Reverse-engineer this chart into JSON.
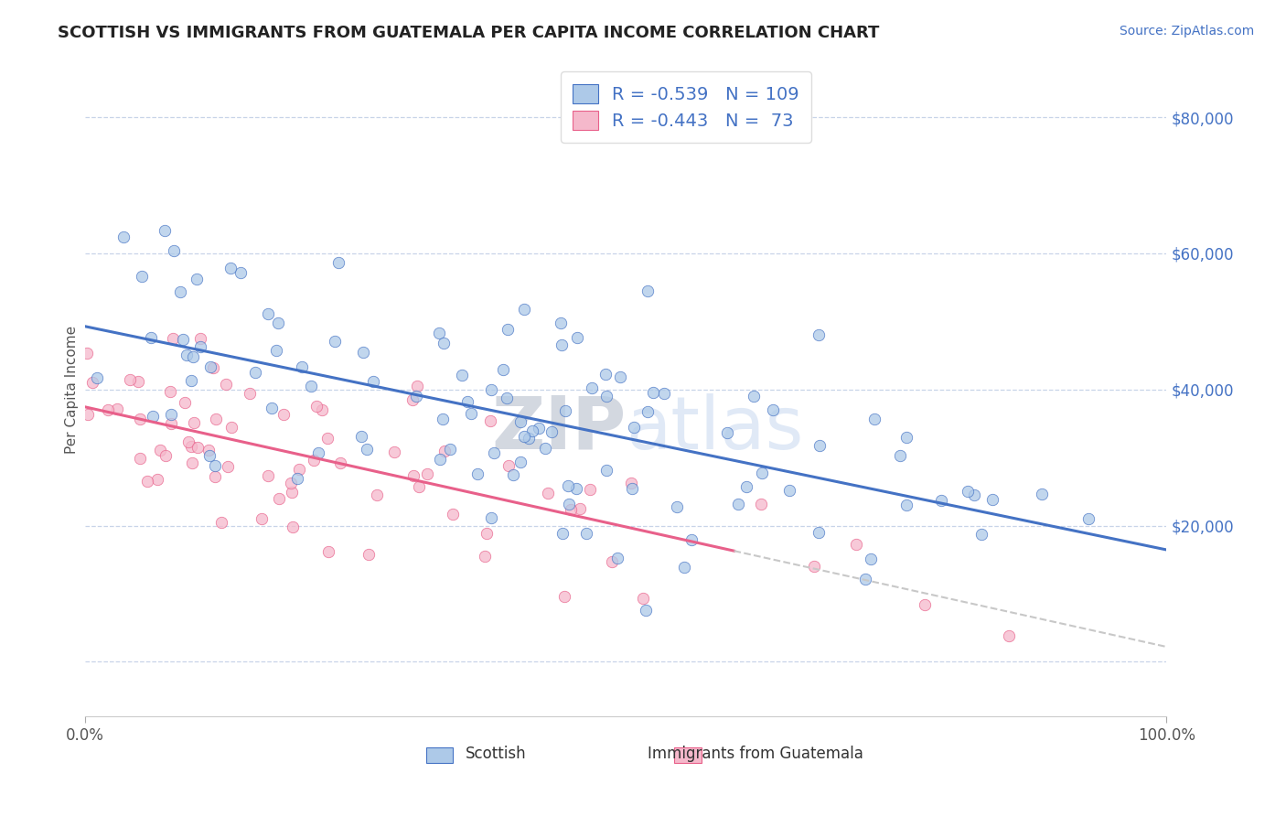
{
  "title": "SCOTTISH VS IMMIGRANTS FROM GUATEMALA PER CAPITA INCOME CORRELATION CHART",
  "source": "Source: ZipAtlas.com",
  "ylabel": "Per Capita Income",
  "xlim": [
    0.0,
    1.0
  ],
  "ylim": [
    -8000,
    88000
  ],
  "yticks": [
    0,
    20000,
    40000,
    60000,
    80000
  ],
  "ytick_labels": [
    "",
    "$20,000",
    "$40,000",
    "$60,000",
    "$80,000"
  ],
  "xtick_labels": [
    "0.0%",
    "100.0%"
  ],
  "legend_r1": "-0.539",
  "legend_n1": "109",
  "legend_r2": "-0.443",
  "legend_n2": " 73",
  "scatter_color_1": "#adc9e8",
  "scatter_color_2": "#f5b8cb",
  "line_color_1": "#4472c4",
  "line_color_2": "#e8608a",
  "line_color_ext": "#c8c8c8",
  "watermark_zip": "ZIP",
  "watermark_atlas": "atlas",
  "background_color": "#ffffff",
  "grid_color": "#c8d4e8",
  "label_color_1": "#4472c4",
  "label_color_2": "#e8608a",
  "scatter1_intercept": 48000,
  "scatter1_slope": -31000,
  "scatter2_intercept": 38000,
  "scatter2_slope": -38000,
  "scatter1_noise": 9000,
  "scatter2_noise": 6000
}
